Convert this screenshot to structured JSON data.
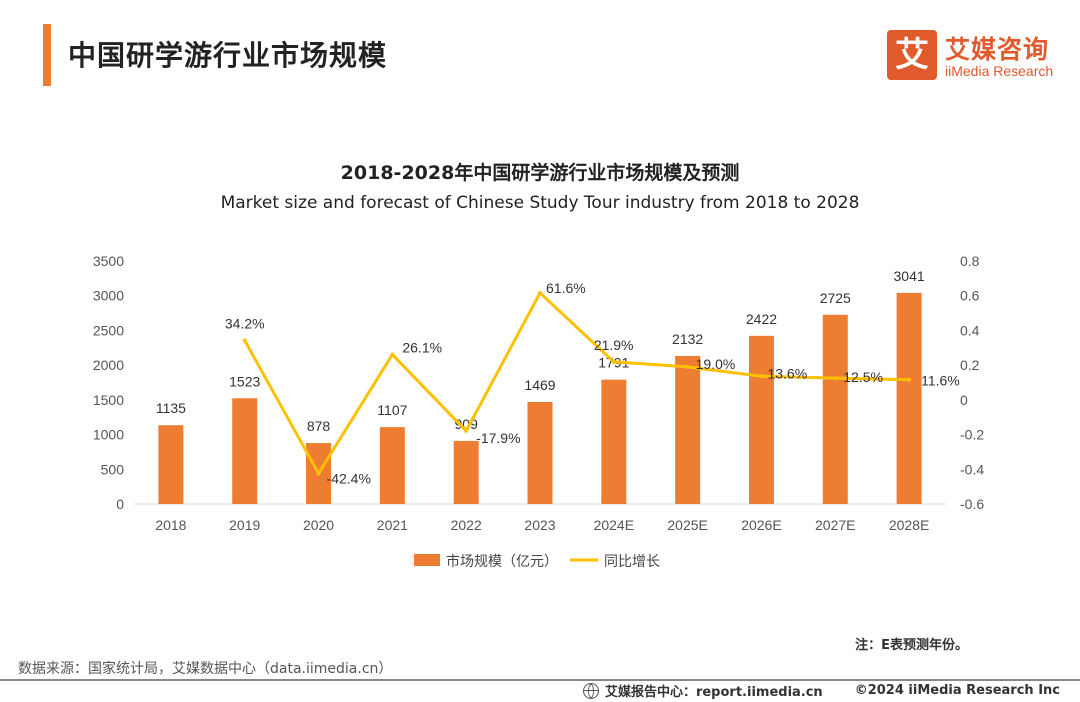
{
  "page_title": "中国研学游行业市场规模",
  "brand": {
    "mark": "艾",
    "name_cn": "艾媒咨询",
    "name_en": "iiMedia Research"
  },
  "note": "注：E表预测年份。",
  "source": "数据来源：国家统计局，艾媒数据中心（data.iimedia.cn）",
  "footer": {
    "report": "艾媒报告中心：report.iimedia.cn",
    "copyright": "©2024  iiMedia Research  Inc"
  },
  "colors": {
    "bar": "#ED7D31",
    "line": "#FFC000",
    "accent": "#E05A2B"
  },
  "chart_data": {
    "type": "bar",
    "title": "2018-2028年中国研学游行业市场规模及预测",
    "subtitle": "Market size and forecast of Chinese Study Tour industry from 2018 to 2028",
    "categories": [
      "2018",
      "2019",
      "2020",
      "2021",
      "2022",
      "2023",
      "2024E",
      "2025E",
      "2026E",
      "2027E",
      "2028E"
    ],
    "series": [
      {
        "name": "市场规模（亿元）",
        "type": "bar",
        "axis": "left",
        "values": [
          1135,
          1523,
          878,
          1107,
          909,
          1469,
          1791,
          2132,
          2422,
          2725,
          3041
        ],
        "labels": [
          "1135",
          "1523",
          "878",
          "1107",
          "909",
          "1469",
          "1791",
          "2132",
          "2422",
          "2725",
          "3041"
        ]
      },
      {
        "name": "同比增长",
        "type": "line",
        "axis": "right",
        "values": [
          null,
          0.342,
          -0.424,
          0.261,
          -0.179,
          0.616,
          0.219,
          0.19,
          0.136,
          0.125,
          0.116
        ],
        "labels": [
          "",
          "34.2%",
          "-42.4%",
          "26.1%",
          "-17.9%",
          "61.6%",
          "21.9%",
          "19.0%",
          "13.6%",
          "12.5%",
          "11.6%"
        ]
      }
    ],
    "y_left": {
      "lim": [
        0,
        3500
      ],
      "ticks": [
        "0",
        "500",
        "1000",
        "1500",
        "2000",
        "2500",
        "3000",
        "3500"
      ]
    },
    "y_right": {
      "lim": [
        -0.6,
        0.8
      ],
      "ticks": [
        "-0.6",
        "-0.4",
        "-0.2",
        "0",
        "0.2",
        "0.4",
        "0.6",
        "0.8"
      ]
    },
    "grid": false,
    "legend": "bottom"
  }
}
